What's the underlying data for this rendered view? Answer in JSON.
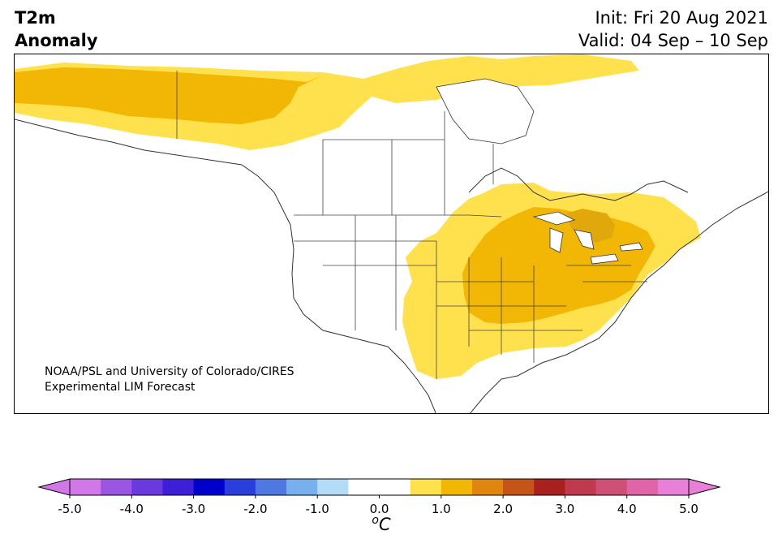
{
  "header": {
    "title_line1": "T2m",
    "title_line2": "Anomaly",
    "init_text": "Init: Fri 20 Aug 2021",
    "valid_text": "Valid: 04 Sep – 10 Sep"
  },
  "credit": {
    "line1": "NOAA/PSL and University of Colorado/CIRES",
    "line2": "Experimental LIM Forecast"
  },
  "colorbar": {
    "unit_base": "C",
    "unit_sup": "o",
    "ticks": [
      "-5.0",
      "-4.0",
      "-3.0",
      "-2.0",
      "-1.0",
      "0.0",
      "1.0",
      "2.0",
      "3.0",
      "4.0",
      "5.0"
    ],
    "colors": [
      "#d277e8",
      "#9b55e3",
      "#6a3adf",
      "#3c1fd6",
      "#0000cc",
      "#2a3edb",
      "#4f78e3",
      "#78b0ee",
      "#b3dcf8",
      "#ffffff",
      "#ffffff",
      "#ffe14d",
      "#f2b705",
      "#e0860f",
      "#c45418",
      "#a8211f",
      "#bf3a4c",
      "#cf5077",
      "#e065a8",
      "#e87fd8"
    ]
  },
  "map": {
    "anomaly_levels": {
      "low": "0.5 to 1.0",
      "mid": "1.0 to 1.5",
      "high": "1.5 to 2.0"
    },
    "colors": {
      "low": "#ffe14d",
      "mid": "#f2b705",
      "high": "#e0a80a",
      "border": "#444444",
      "coast": "#333333"
    }
  }
}
